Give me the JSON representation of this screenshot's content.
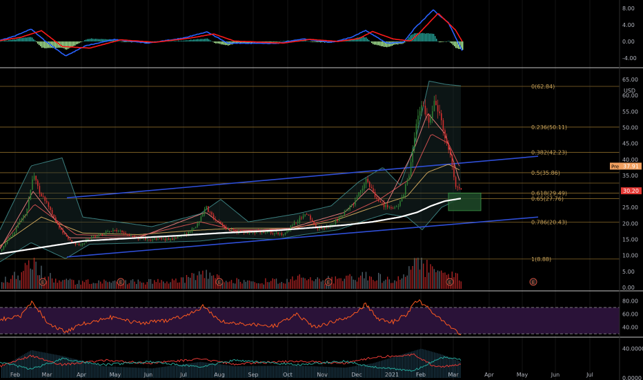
{
  "chart_data": {
    "type": "candlestick",
    "x_ticks": [
      "Feb",
      "Mar",
      "Apr",
      "May",
      "Jun",
      "Jul",
      "Aug",
      "Sep",
      "Oct",
      "Nov",
      "Dec",
      "2021",
      "Feb",
      "Mar",
      "Apr",
      "May",
      "Jun",
      "Jul"
    ],
    "macd_panel": {
      "yticks": [
        "8.00",
        "4.00",
        "0.00",
        "-4.00"
      ],
      "ylim": [
        -4.5,
        9
      ],
      "macd_line": [
        [
          0,
          0.3
        ],
        [
          20,
          1.2
        ],
        [
          45,
          3.0
        ],
        [
          65,
          0.2
        ],
        [
          95,
          -3.5
        ],
        [
          125,
          -1.0
        ],
        [
          165,
          0.5
        ],
        [
          215,
          -0.4
        ],
        [
          265,
          0.8
        ],
        [
          300,
          2.3
        ],
        [
          330,
          -0.4
        ],
        [
          400,
          -0.5
        ],
        [
          440,
          0.6
        ],
        [
          480,
          -0.2
        ],
        [
          510,
          1.0
        ],
        [
          530,
          2.7
        ],
        [
          560,
          -0.4
        ],
        [
          585,
          -0.2
        ],
        [
          600,
          3.0
        ],
        [
          628,
          7.6
        ],
        [
          650,
          4.5
        ],
        [
          670,
          -2.3
        ]
      ],
      "signal_line": [
        [
          0,
          0.2
        ],
        [
          30,
          1.0
        ],
        [
          60,
          2.6
        ],
        [
          90,
          -1.2
        ],
        [
          130,
          -1.6
        ],
        [
          175,
          0.4
        ],
        [
          225,
          -0.2
        ],
        [
          275,
          0.8
        ],
        [
          310,
          1.8
        ],
        [
          340,
          0.1
        ],
        [
          410,
          -0.4
        ],
        [
          450,
          0.5
        ],
        [
          490,
          0.0
        ],
        [
          520,
          0.7
        ],
        [
          540,
          2.4
        ],
        [
          570,
          0.6
        ],
        [
          595,
          0.1
        ],
        [
          610,
          2.4
        ],
        [
          635,
          6.8
        ],
        [
          660,
          2.8
        ],
        [
          670,
          0.0
        ]
      ],
      "line_colors": {
        "macd": "#2962ff",
        "signal": "#ff1a1a"
      },
      "hist_colors": {
        "pos": "#26a69a",
        "neg": "#b6ffa0"
      }
    },
    "price_panel": {
      "yticks": [
        "65.00",
        "60.00",
        "55.00",
        "50.00",
        "45.00",
        "40.00",
        "35.00",
        "30.00",
        "25.00",
        "20.00",
        "15.00",
        "10.00",
        "5.00",
        "0.00"
      ],
      "ylim": [
        0,
        65
      ],
      "currency": "USD",
      "price_labels": [
        {
          "text": "Pre",
          "value": "37.91",
          "color": "#f0a060"
        },
        {
          "text": "",
          "value": "30.20",
          "color": "#e53935"
        }
      ],
      "fibonacci": [
        {
          "label": "0(62.84)",
          "value": 62.84
        },
        {
          "label": "0.236(50.11)",
          "value": 50.11
        },
        {
          "label": "0.382(42.23)",
          "value": 42.23
        },
        {
          "label": "0.5(35.86)",
          "value": 35.86
        },
        {
          "label": "0.618(29.49)",
          "value": 29.49
        },
        {
          "label": "0.65(27.76)",
          "value": 27.76
        },
        {
          "label": "0.786(20.43)",
          "value": 20.43
        },
        {
          "label": "1(8.88)",
          "value": 8.88
        }
      ],
      "extra_hlines": [
        32.6
      ],
      "channel_upper": [
        [
          97,
          28.0
        ],
        [
          780,
          41.0
        ]
      ],
      "channel_lower": [
        [
          97,
          9.5
        ],
        [
          780,
          22.0
        ]
      ],
      "highlight_box": {
        "x0": 650,
        "x1": 697,
        "y0": 24.0,
        "y1": 29.5
      },
      "close": [
        [
          0,
          11.5
        ],
        [
          20,
          17.5
        ],
        [
          38,
          24.0
        ],
        [
          48,
          35.0
        ],
        [
          55,
          30.5
        ],
        [
          70,
          25.0
        ],
        [
          88,
          18.0
        ],
        [
          100,
          14.5
        ],
        [
          115,
          13.2
        ],
        [
          130,
          15.5
        ],
        [
          150,
          17.0
        ],
        [
          170,
          17.8
        ],
        [
          195,
          15.5
        ],
        [
          220,
          15.0
        ],
        [
          250,
          15.2
        ],
        [
          270,
          16.5
        ],
        [
          285,
          19.5
        ],
        [
          298,
          25.0
        ],
        [
          310,
          21.5
        ],
        [
          330,
          18.0
        ],
        [
          360,
          17.0
        ],
        [
          385,
          17.5
        ],
        [
          410,
          16.5
        ],
        [
          425,
          20.0
        ],
        [
          445,
          23.0
        ],
        [
          458,
          18.5
        ],
        [
          470,
          18.5
        ],
        [
          485,
          20.5
        ],
        [
          500,
          24.0
        ],
        [
          515,
          27.0
        ],
        [
          530,
          34.0
        ],
        [
          545,
          27.0
        ],
        [
          565,
          24.5
        ],
        [
          580,
          26.5
        ],
        [
          592,
          35.0
        ],
        [
          600,
          48.0
        ],
        [
          610,
          58.5
        ],
        [
          620,
          52.0
        ],
        [
          630,
          58.0
        ],
        [
          640,
          51.0
        ],
        [
          650,
          43.0
        ],
        [
          660,
          32.0
        ],
        [
          668,
          30.2
        ]
      ],
      "ma200": [
        [
          0,
          10.5
        ],
        [
          60,
          12.5
        ],
        [
          120,
          14.5
        ],
        [
          200,
          15.5
        ],
        [
          260,
          16.2
        ],
        [
          320,
          17.0
        ],
        [
          400,
          17.8
        ],
        [
          460,
          18.8
        ],
        [
          500,
          19.5
        ],
        [
          540,
          20.5
        ],
        [
          580,
          22.0
        ],
        [
          605,
          23.5
        ],
        [
          625,
          25.5
        ],
        [
          645,
          27.0
        ],
        [
          668,
          27.8
        ]
      ],
      "ma_slow": [
        [
          0,
          13.0
        ],
        [
          60,
          22.0
        ],
        [
          120,
          17.0
        ],
        [
          200,
          16.5
        ],
        [
          280,
          17.8
        ],
        [
          340,
          18.5
        ],
        [
          420,
          18.5
        ],
        [
          480,
          20.5
        ],
        [
          540,
          25.0
        ],
        [
          590,
          28.5
        ],
        [
          620,
          36.0
        ],
        [
          650,
          38.5
        ],
        [
          668,
          36.5
        ]
      ],
      "ma_mid": [
        [
          0,
          12.5
        ],
        [
          50,
          26.0
        ],
        [
          110,
          16.5
        ],
        [
          200,
          16.0
        ],
        [
          290,
          20.5
        ],
        [
          340,
          18.0
        ],
        [
          420,
          18.0
        ],
        [
          500,
          22.5
        ],
        [
          550,
          27.5
        ],
        [
          595,
          34.0
        ],
        [
          625,
          48.0
        ],
        [
          650,
          45.0
        ],
        [
          668,
          37.0
        ]
      ],
      "ma_fast": [
        [
          0,
          12.0
        ],
        [
          48,
          30.0
        ],
        [
          100,
          15.5
        ],
        [
          200,
          15.5
        ],
        [
          298,
          23.5
        ],
        [
          335,
          17.5
        ],
        [
          420,
          18.5
        ],
        [
          500,
          23.5
        ],
        [
          535,
          31.0
        ],
        [
          560,
          26.0
        ],
        [
          598,
          42.0
        ],
        [
          620,
          54.5
        ],
        [
          645,
          48.0
        ],
        [
          668,
          32.0
        ]
      ],
      "bb_upper": [
        [
          0,
          18.0
        ],
        [
          45,
          38.0
        ],
        [
          90,
          40.5
        ],
        [
          120,
          22.0
        ],
        [
          220,
          19.0
        ],
        [
          290,
          23.0
        ],
        [
          320,
          27.5
        ],
        [
          360,
          20.5
        ],
        [
          430,
          23.0
        ],
        [
          480,
          25.5
        ],
        [
          520,
          33.0
        ],
        [
          555,
          37.5
        ],
        [
          580,
          32.0
        ],
        [
          600,
          44.0
        ],
        [
          622,
          64.5
        ],
        [
          645,
          63.5
        ],
        [
          668,
          63.0
        ]
      ],
      "bb_lower": [
        [
          0,
          8.0
        ],
        [
          45,
          14.0
        ],
        [
          95,
          9.0
        ],
        [
          130,
          13.5
        ],
        [
          220,
          14.0
        ],
        [
          290,
          14.5
        ],
        [
          330,
          15.5
        ],
        [
          400,
          15.0
        ],
        [
          440,
          16.5
        ],
        [
          490,
          18.0
        ],
        [
          530,
          21.0
        ],
        [
          560,
          23.0
        ],
        [
          590,
          22.0
        ],
        [
          612,
          18.0
        ],
        [
          640,
          25.0
        ],
        [
          668,
          28.0
        ]
      ],
      "volume": [
        [
          0,
          1.5
        ],
        [
          15,
          2.5
        ],
        [
          30,
          3.0
        ],
        [
          47,
          6.5
        ],
        [
          60,
          3.5
        ],
        [
          80,
          2.0
        ],
        [
          120,
          1.5
        ],
        [
          160,
          1.6
        ],
        [
          200,
          1.5
        ],
        [
          240,
          1.7
        ],
        [
          270,
          2.2
        ],
        [
          298,
          3.6
        ],
        [
          330,
          1.8
        ],
        [
          360,
          1.6
        ],
        [
          410,
          1.8
        ],
        [
          440,
          2.4
        ],
        [
          470,
          1.9
        ],
        [
          500,
          2.4
        ],
        [
          530,
          3.2
        ],
        [
          560,
          2.0
        ],
        [
          585,
          2.6
        ],
        [
          604,
          5.8
        ],
        [
          625,
          4.0
        ],
        [
          650,
          2.8
        ],
        [
          668,
          2.4
        ]
      ],
      "earnings_markers": [
        {
          "text": "E",
          "at": 62
        },
        {
          "text": "E",
          "at": 175
        },
        {
          "text": "E",
          "at": 318
        },
        {
          "text": "E",
          "at": 476
        },
        {
          "text": "E",
          "at": 652
        },
        {
          "text": "E",
          "at": 773
        }
      ]
    },
    "rsi_panel": {
      "yticks": [
        "80.00",
        "60.00",
        "40.00"
      ],
      "ylim": [
        28,
        90
      ],
      "bands": [
        70,
        30
      ],
      "band_fill": "#2a1238",
      "line_color": "#ff5a1f",
      "rsi": [
        [
          0,
          52
        ],
        [
          30,
          56
        ],
        [
          47,
          80
        ],
        [
          70,
          45
        ],
        [
          95,
          33
        ],
        [
          120,
          45
        ],
        [
          160,
          55
        ],
        [
          200,
          46
        ],
        [
          240,
          50
        ],
        [
          270,
          58
        ],
        [
          295,
          72
        ],
        [
          320,
          48
        ],
        [
          360,
          45
        ],
        [
          400,
          42
        ],
        [
          430,
          60
        ],
        [
          455,
          40
        ],
        [
          480,
          47
        ],
        [
          510,
          58
        ],
        [
          530,
          75
        ],
        [
          548,
          52
        ],
        [
          570,
          48
        ],
        [
          590,
          60
        ],
        [
          605,
          82
        ],
        [
          620,
          70
        ],
        [
          640,
          50
        ],
        [
          668,
          30
        ]
      ]
    },
    "dmi_panel": {
      "yticks": [
        "40.0000",
        "0.0000"
      ],
      "ylim": [
        0,
        50
      ],
      "plus_di": [
        [
          0,
          16
        ],
        [
          45,
          30
        ],
        [
          90,
          18
        ],
        [
          150,
          24
        ],
        [
          220,
          20
        ],
        [
          290,
          26
        ],
        [
          340,
          19
        ],
        [
          430,
          23
        ],
        [
          500,
          20
        ],
        [
          540,
          28
        ],
        [
          600,
          32
        ],
        [
          630,
          15
        ],
        [
          668,
          18
        ]
      ],
      "minus_di": [
        [
          0,
          22
        ],
        [
          45,
          12
        ],
        [
          90,
          26
        ],
        [
          150,
          18
        ],
        [
          220,
          22
        ],
        [
          290,
          15
        ],
        [
          340,
          24
        ],
        [
          430,
          18
        ],
        [
          500,
          23
        ],
        [
          540,
          15
        ],
        [
          600,
          10
        ],
        [
          640,
          28
        ],
        [
          668,
          25
        ]
      ],
      "adx_hist": [
        [
          0,
          14
        ],
        [
          45,
          38
        ],
        [
          90,
          30
        ],
        [
          150,
          16
        ],
        [
          220,
          13
        ],
        [
          290,
          22
        ],
        [
          340,
          16
        ],
        [
          430,
          17
        ],
        [
          500,
          14
        ],
        [
          540,
          20
        ],
        [
          610,
          40
        ],
        [
          640,
          32
        ],
        [
          668,
          22
        ]
      ],
      "colors": {
        "plus": "#e53935",
        "minus": "#26a69a",
        "adx": "#1c3a4a"
      }
    }
  }
}
